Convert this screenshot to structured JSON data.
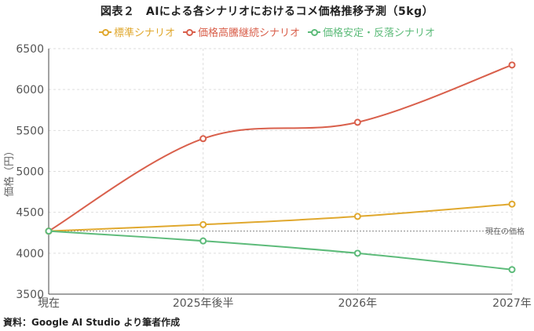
{
  "title": "図表２　AIによる各シナリオにおけるコメ価格推移予測（5kg）",
  "source": "資料：Google AI Studio より筆者作成",
  "chart_data": {
    "type": "line",
    "title": "図表２　AIによる各シナリオにおけるコメ価格推移予測（5kg）",
    "ylabel": "価格（円）",
    "xlabel": "",
    "categories": [
      "現在",
      "2025年後半",
      "2026年",
      "2027年"
    ],
    "yticks": [
      3500,
      4000,
      4500,
      5000,
      5500,
      6000,
      6500
    ],
    "ylim": [
      3500,
      6500
    ],
    "grid": true,
    "legend_position": "top",
    "series": [
      {
        "name": "標準シナリオ",
        "color": "#e0a82e",
        "values": [
          4270,
          4350,
          4450,
          4600
        ]
      },
      {
        "name": "価格高騰継続シナリオ",
        "color": "#d9604c",
        "values": [
          4270,
          5400,
          5600,
          6300
        ]
      },
      {
        "name": "価格安定・反落シナリオ",
        "color": "#5dbb7a",
        "values": [
          4270,
          4150,
          4000,
          3800
        ]
      }
    ],
    "reference_line": {
      "label": "現在の価格",
      "value": 4270
    }
  }
}
